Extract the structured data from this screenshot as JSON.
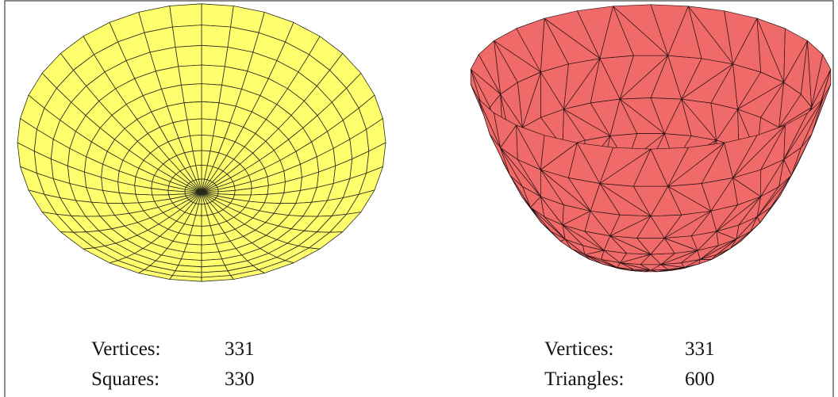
{
  "left": {
    "rows": [
      {
        "label": "Vertices:",
        "value": 331
      },
      {
        "label": "Squares:",
        "value": 330
      }
    ]
  },
  "right": {
    "rows": [
      {
        "label": "Vertices:",
        "value": 331
      },
      {
        "label": "Triangles:",
        "value": 600
      }
    ]
  }
}
